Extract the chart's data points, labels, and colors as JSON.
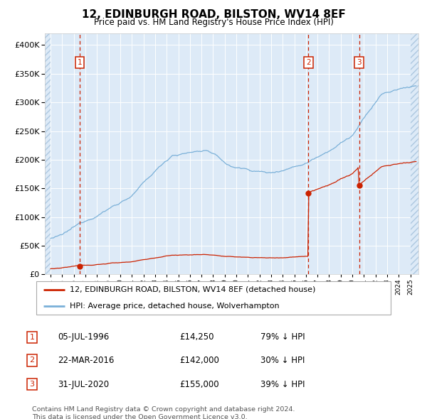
{
  "title": "12, EDINBURGH ROAD, BILSTON, WV14 8EF",
  "subtitle": "Price paid vs. HM Land Registry's House Price Index (HPI)",
  "hpi_color": "#7ab0d8",
  "price_color": "#cc2200",
  "background_color": "#ddeaf7",
  "hatch_color": "#adc8e0",
  "grid_color": "#ffffff",
  "transactions": [
    {
      "num": 1,
      "date_label": "05-JUL-1996",
      "year": 1996.5,
      "price": 14250,
      "pct": "79% ↓ HPI"
    },
    {
      "num": 2,
      "date_label": "22-MAR-2016",
      "year": 2016.22,
      "price": 142000,
      "pct": "30% ↓ HPI"
    },
    {
      "num": 3,
      "date_label": "31-JUL-2020",
      "year": 2020.58,
      "price": 155000,
      "pct": "39% ↓ HPI"
    }
  ],
  "legend_entries": [
    "12, EDINBURGH ROAD, BILSTON, WV14 8EF (detached house)",
    "HPI: Average price, detached house, Wolverhampton"
  ],
  "footnote": "Contains HM Land Registry data © Crown copyright and database right 2024.\nThis data is licensed under the Open Government Licence v3.0.",
  "ylim": [
    0,
    420000
  ],
  "xlim_start": 1993.5,
  "xlim_end": 2025.7
}
